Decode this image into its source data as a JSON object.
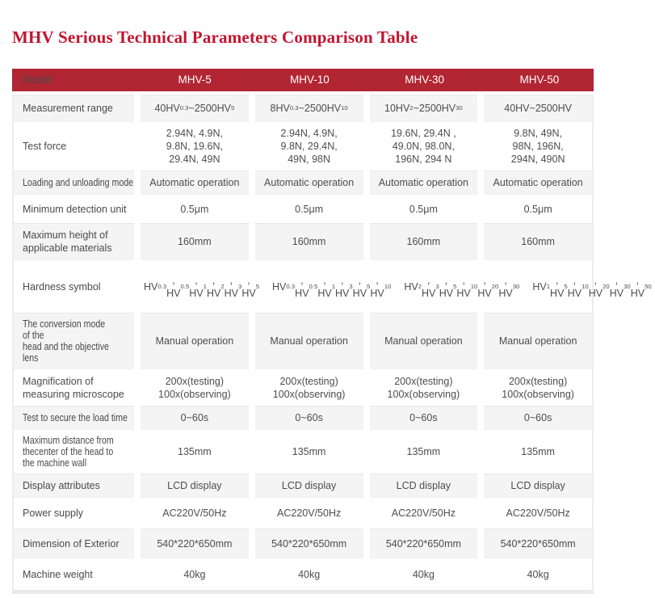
{
  "title": "MHV Serious Technical Parameters Comparison Table",
  "colors": {
    "title": "#c1152f",
    "header_bg": "#b22532",
    "header_text": "#ffffff",
    "row_shade": "#f4f4f4"
  },
  "table": {
    "header": [
      "Model",
      "MHV-5",
      "MHV-10",
      "MHV-30",
      "MHV-50"
    ],
    "rows": [
      {
        "label": "Measurement range",
        "values": [
          "40HV_{0.3}~2500HV_{5}",
          "8HV_{0.3}~2500HV_{10}",
          "10HV_{2}~2500HV_{30}",
          "40HV~2500HV"
        ]
      },
      {
        "label": "Test force",
        "values": [
          "2.94N、4.9N、\n9.8N、19.6N、\n29.4N、49N",
          "2.94N、4.9N、\n9.8N、29.4N、\n49N、98N",
          "19.6N、29.4N 、\n49.0N、98.0N、\n196N、294 N",
          "9.8N、49N、\n98N、196N、\n294N、490N"
        ]
      },
      {
        "label": "Loading and unloading mode",
        "values": [
          "Automatic operation",
          "Automatic operation",
          "Automatic operation",
          "Automatic operation"
        ]
      },
      {
        "label": "Minimum detection unit",
        "values": [
          "0.5μm",
          "0.5μm",
          "0.5μm",
          "0.5μm"
        ]
      },
      {
        "label": "Maximum height of\napplicable materials",
        "values": [
          "160mm",
          "160mm",
          "160mm",
          "160mm"
        ]
      },
      {
        "label": "Hardness symbol",
        "values": [
          "HV_{0.3}、HV_{0.5}、\nHV_{1}、HV_{2}、\nHV_{3}、HV_{5}",
          "HV_{0.3}、HV_{0.5}、\nHV_{1}、HV_{3}、\nHV_{5}、HV_{10}",
          "HV_{2}、HV_{3}、\nHV_{5}、HV_{10}、\nHV_{20}、HV_{30}",
          "HV_{1}、HV_{5}、\nHV_{10}、HV_{20}、\nHV_{30}、HV_{50}"
        ]
      },
      {
        "label": "The conversion mode of the\nhead and the objective lens",
        "values": [
          "Manual operation",
          "Manual operation",
          "Manual operation",
          "Manual operation"
        ]
      },
      {
        "label": "Magnification of\nmeasuring microscope",
        "values": [
          "200x(testing)\n100x(observing)",
          "200x(testing)\n100x(observing)",
          "200x(testing)\n100x(observing)",
          "200x(testing)\n100x(observing)"
        ]
      },
      {
        "label": "Test to secure the load time",
        "values": [
          "0~60s",
          "0~60s",
          "0~60s",
          "0~60s"
        ]
      },
      {
        "label": "Maximum distance from\nthecenter of the head to\nthe machine wall",
        "values": [
          "135mm",
          "135mm",
          "135mm",
          "135mm"
        ]
      },
      {
        "label": "Display attributes",
        "values": [
          "LCD display",
          "LCD display",
          "LCD display",
          "LCD display"
        ]
      },
      {
        "label": "Power supply",
        "values": [
          "AC220V/50Hz",
          "AC220V/50Hz",
          "AC220V/50Hz",
          "AC220V/50Hz"
        ]
      },
      {
        "label": "Dimension of Exterior",
        "values": [
          "540*220*650mm",
          "540*220*650mm",
          "540*220*650mm",
          "540*220*650mm"
        ]
      },
      {
        "label": "Machine weight",
        "values": [
          "40kg",
          "40kg",
          "40kg",
          "40kg"
        ]
      }
    ]
  }
}
